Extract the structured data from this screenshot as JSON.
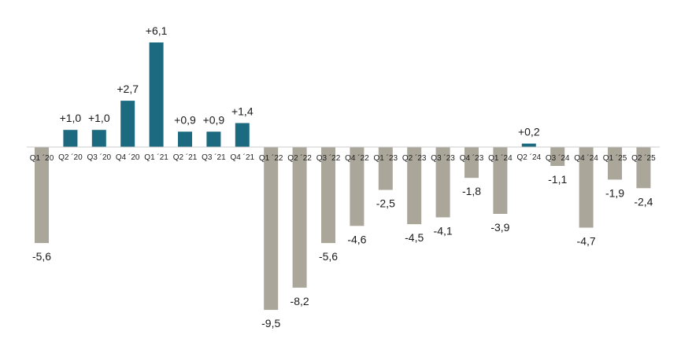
{
  "chart_data": {
    "type": "bar",
    "title": "",
    "xlabel": "",
    "ylabel": "",
    "ylim": [
      -9.5,
      6.1
    ],
    "grid": false,
    "legend": "none",
    "colors": {
      "positive": "#1b6a80",
      "negative": "#aaa69a",
      "axis": "#cccccc"
    },
    "categories": [
      "Q1 ´20",
      "Q2 ´20",
      "Q3 ´20",
      "Q4 ´20",
      "Q1 ´21",
      "Q2 ´21",
      "Q3 ´21",
      "Q4 ´21",
      "Q1 ´22",
      "Q2 ´22",
      "Q3 ´22",
      "Q4 ´22",
      "Q1 ´23",
      "Q2 ´23",
      "Q3 ´23",
      "Q4 ´23",
      "Q1 ´24",
      "Q2 ´24",
      "Q3 ´24",
      "Q4 ´24",
      "Q1 ´25",
      "Q2 ´25"
    ],
    "values": [
      -5.6,
      1.0,
      1.0,
      2.7,
      6.1,
      0.9,
      0.9,
      1.4,
      -9.5,
      -8.2,
      -5.6,
      -4.6,
      -2.5,
      -4.5,
      -4.1,
      -1.8,
      -3.9,
      0.2,
      -1.1,
      -4.7,
      -1.9,
      -2.4
    ],
    "labels": [
      "-5,6",
      "+1,0",
      "+1,0",
      "+2,7",
      "+6,1",
      "+0,9",
      "+0,9",
      "+1,4",
      "-9,5",
      "-8,2",
      "-5,6",
      "-4,6",
      "-2,5",
      "-4,5",
      "-4,1",
      "-1,8",
      "-3,9",
      "+0,2",
      "-1,1",
      "-4,7",
      "-1,9",
      "-2,4"
    ]
  }
}
